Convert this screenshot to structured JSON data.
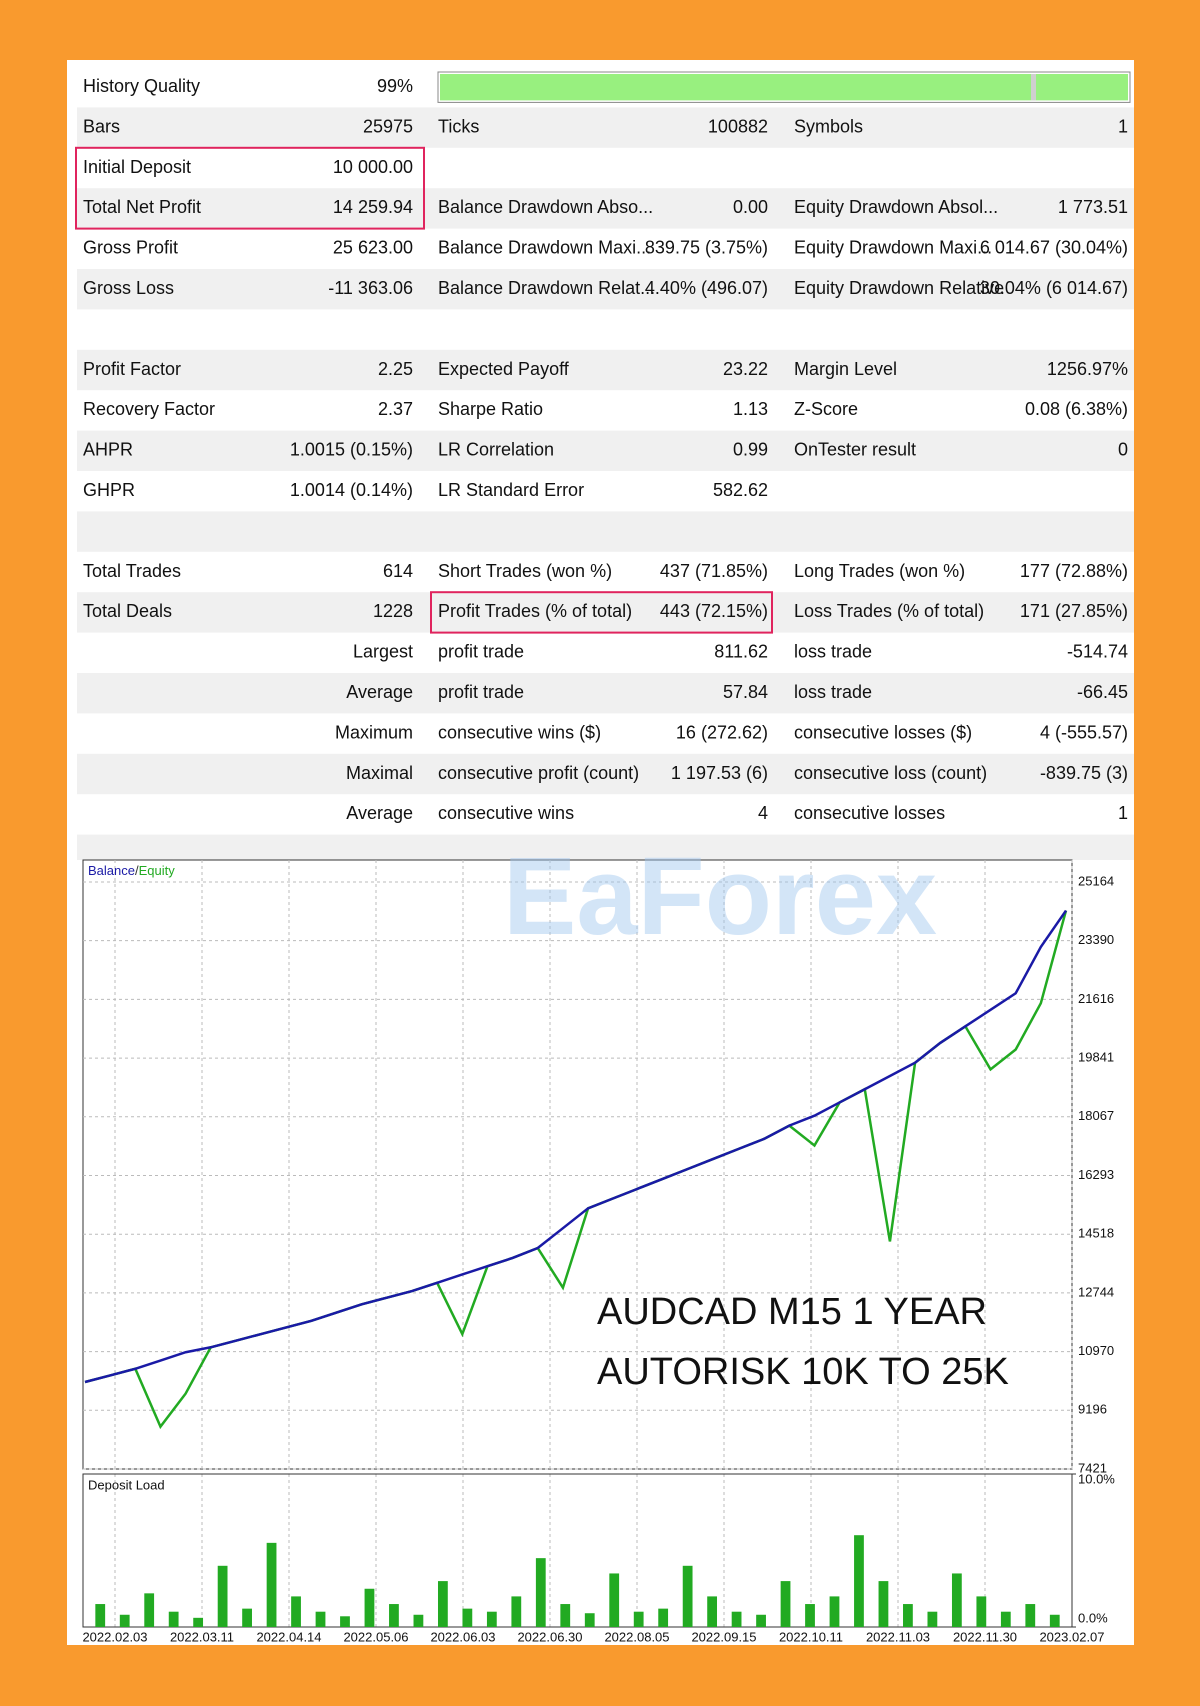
{
  "report": {
    "sections": [
      [
        [
          "History Quality",
          "99%"
        ],
        [
          "Bars",
          "25975",
          "Ticks",
          "100882",
          "Symbols",
          "1"
        ],
        [
          "Initial Deposit",
          "10 000.00"
        ],
        [
          "Total Net Profit",
          "14 259.94",
          "Balance Drawdown Abso...",
          "0.00",
          "Equity Drawdown Absol...",
          "1 773.51"
        ],
        [
          "Gross Profit",
          "25 623.00",
          "Balance Drawdown Maxi...",
          "839.75 (3.75%)",
          "Equity Drawdown Maxi...",
          "6 014.67 (30.04%)"
        ],
        [
          "Gross Loss",
          "-11 363.06",
          "Balance Drawdown Relat...",
          "4.40% (496.07)",
          "Equity Drawdown Relative",
          "30.04% (6 014.67)"
        ]
      ],
      [
        [
          "Profit Factor",
          "2.25",
          "Expected Payoff",
          "23.22",
          "Margin Level",
          "1256.97%"
        ],
        [
          "Recovery Factor",
          "2.37",
          "Sharpe Ratio",
          "1.13",
          "Z-Score",
          "0.08 (6.38%)"
        ],
        [
          "AHPR",
          "1.0015 (0.15%)",
          "LR Correlation",
          "0.99",
          "OnTester result",
          "0"
        ],
        [
          "GHPR",
          "1.0014 (0.14%)",
          "LR Standard Error",
          "582.62"
        ]
      ],
      [
        [
          "Total Trades",
          "614",
          "Short Trades (won %)",
          "437 (71.85%)",
          "Long Trades (won %)",
          "177 (72.88%)"
        ],
        [
          "Total Deals",
          "1228",
          "Profit Trades (% of total)",
          "443 (72.15%)",
          "Loss Trades (% of total)",
          "171 (27.85%)"
        ],
        [
          "Largest",
          "profit trade",
          "811.62",
          "loss trade",
          "-514.74"
        ],
        [
          "Average",
          "profit trade",
          "57.84",
          "loss trade",
          "-66.45"
        ],
        [
          "Maximum",
          "consecutive wins ($)",
          "16 (272.62)",
          "consecutive losses ($)",
          "4 (-555.57)"
        ],
        [
          "Maximal",
          "consecutive profit (count)",
          "1 197.53 (6)",
          "consecutive loss (count)",
          "-839.75 (3)"
        ],
        [
          "Average",
          "consecutive wins",
          "4",
          "consecutive losses",
          "1"
        ]
      ]
    ]
  },
  "watermark": "EaForex",
  "chart_data": [
    {
      "type": "line",
      "legend_separator": "/",
      "annotations": [
        "AUDCAD M15 1 YEAR",
        "AUTORISK 10K TO 25K"
      ],
      "xticks": [
        "2022.02.03",
        "2022.03.11",
        "2022.04.14",
        "2022.05.06",
        "2022.06.03",
        "2022.06.30",
        "2022.08.05",
        "2022.09.15",
        "2022.10.11",
        "2022.11.03",
        "2022.11.30",
        "2023.02.07"
      ],
      "ylim": [
        7421,
        25828
      ],
      "yticks": [
        25164,
        23390,
        21616,
        19841,
        18067,
        16293,
        14518,
        12744,
        10970,
        9196,
        7421
      ],
      "grid": true,
      "series": [
        {
          "name": "Balance",
          "color": "#1a1aa6",
          "values": [
            10050,
            10250,
            10450,
            10700,
            10950,
            11100,
            11300,
            11500,
            11700,
            11900,
            12150,
            12400,
            12600,
            12800,
            13050,
            13300,
            13550,
            13800,
            14100,
            14700,
            15300,
            15600,
            15900,
            16200,
            16500,
            16800,
            17100,
            17400,
            17800,
            18100,
            18500,
            18900,
            19300,
            19700,
            20300,
            20800,
            21300,
            21800,
            23200,
            24300
          ]
        },
        {
          "name": "Equity",
          "color": "#22aa22",
          "values": [
            10050,
            10250,
            10450,
            8700,
            9700,
            11100,
            11300,
            11500,
            11700,
            11900,
            12150,
            12400,
            12600,
            12800,
            13050,
            11500,
            13550,
            13800,
            14100,
            12900,
            15300,
            15600,
            15900,
            16200,
            16500,
            16800,
            17100,
            17400,
            17800,
            17200,
            18500,
            18900,
            14300,
            19700,
            20300,
            20800,
            19500,
            20100,
            21500,
            24300
          ]
        }
      ]
    },
    {
      "type": "bar",
      "title": "Deposit Load",
      "color": "#22aa22",
      "ylim": [
        0,
        10
      ],
      "yticks": [
        {
          "value": 10,
          "label": "10.0%"
        },
        {
          "value": 0,
          "label": "0.0%"
        }
      ],
      "values": [
        1.5,
        0.8,
        2.2,
        1.0,
        0.6,
        4.0,
        1.2,
        5.5,
        2.0,
        1.0,
        0.7,
        2.5,
        1.5,
        0.8,
        3.0,
        1.2,
        1.0,
        2.0,
        4.5,
        1.5,
        0.9,
        3.5,
        1.0,
        1.2,
        4.0,
        2.0,
        1.0,
        0.8,
        3.0,
        1.5,
        2.0,
        6.0,
        3.0,
        1.5,
        1.0,
        3.5,
        2.0,
        1.0,
        1.5,
        0.8
      ]
    }
  ]
}
